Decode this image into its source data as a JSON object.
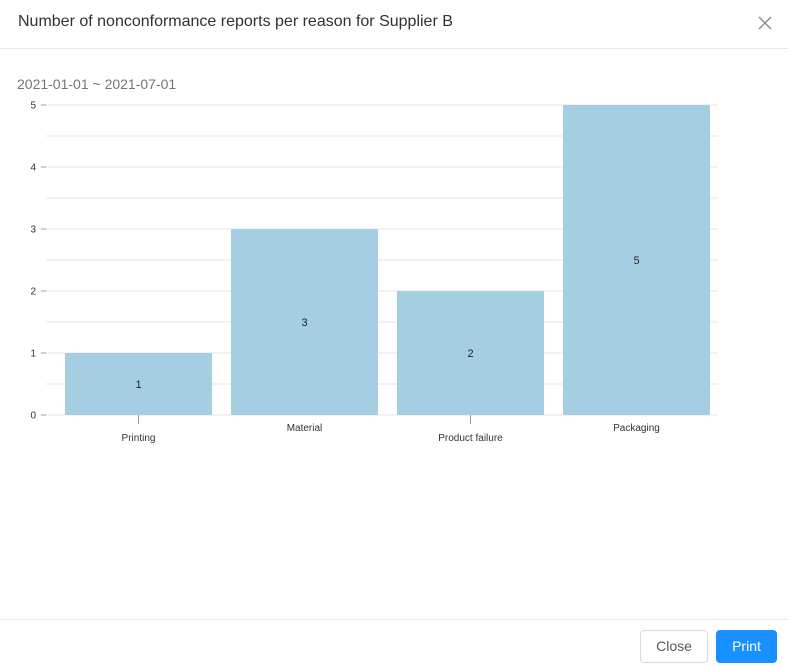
{
  "dialog": {
    "title": "Number of nonconformance reports per reason for Supplier B",
    "date_range": "2021-01-01 ~ 2021-07-01",
    "close_button": "Close",
    "print_button": "Print",
    "close_icon": "close-icon"
  },
  "colors": {
    "bar": "#a6cee3",
    "primary": "#1890ff",
    "grid": "#e6e6e6"
  },
  "chart_data": {
    "type": "bar",
    "categories": [
      "Printing",
      "Material",
      "Product failure",
      "Packaging"
    ],
    "values": [
      1,
      3,
      2,
      5
    ],
    "data_labels": [
      "1",
      "3",
      "2",
      "5"
    ],
    "yticks": [
      "0",
      "1",
      "2",
      "3",
      "4",
      "5"
    ],
    "ylim": [
      0,
      5
    ],
    "grid": true,
    "minor_grid_step": 0.5
  }
}
